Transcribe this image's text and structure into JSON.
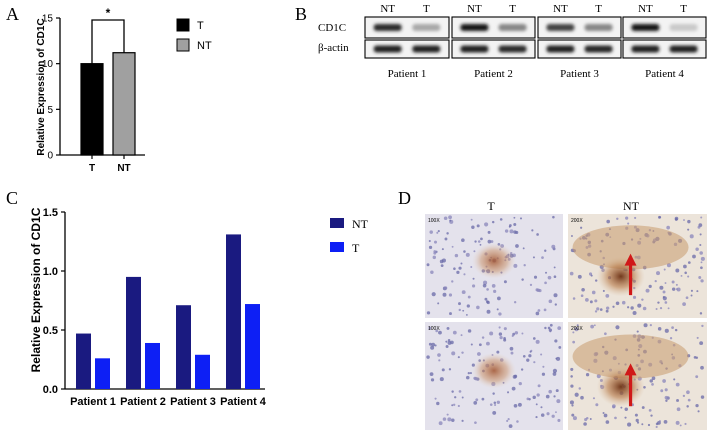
{
  "panels": {
    "A": "A",
    "B": "B",
    "C": "C",
    "D": "D"
  },
  "chart_data": [
    {
      "panel": "A",
      "type": "bar",
      "categories": [
        "T",
        "NT"
      ],
      "series": [
        {
          "values": [
            10.0,
            11.2
          ]
        }
      ],
      "ylabel": "Relative Expression of CD1C",
      "ylim": [
        0,
        15
      ],
      "yticks": [
        "0",
        "5",
        "10",
        "15"
      ],
      "legend": [
        {
          "label": "T",
          "color": "#000000"
        },
        {
          "label": "NT",
          "color": "#a0a0a0"
        }
      ],
      "legend_placement": "right",
      "significance": "*",
      "colors": [
        "#000000",
        "#a0a0a0"
      ],
      "grid": false
    },
    {
      "panel": "C",
      "type": "bar",
      "categories": [
        "Patient 1",
        "Patient 2",
        "Patient 3",
        "Patient 4"
      ],
      "series": [
        {
          "name": "NT",
          "values": [
            0.47,
            0.95,
            0.71,
            1.31
          ],
          "color": "#1a1a80"
        },
        {
          "name": "T",
          "values": [
            0.26,
            0.39,
            0.29,
            0.72
          ],
          "color": "#0d1ff5"
        }
      ],
      "ylabel": "Relative Expression of CD1C",
      "ylim": [
        0,
        1.5
      ],
      "yticks": [
        "0.0",
        "0.5",
        "1.0",
        "1.5"
      ],
      "legend_placement": "right",
      "grid": false
    }
  ],
  "blot": {
    "lane_labels": [
      "NT",
      "T",
      "NT",
      "T",
      "NT",
      "T",
      "NT",
      "T"
    ],
    "row_labels": [
      "CD1C",
      "β-actin"
    ],
    "patients": [
      "Patient 1",
      "Patient 2",
      "Patient 3",
      "Patient 4"
    ],
    "cd1c_intensity": [
      0.85,
      0.3,
      0.95,
      0.45,
      0.75,
      0.45,
      0.95,
      0.15
    ],
    "actin_intensity": [
      0.9,
      0.9,
      0.9,
      0.85,
      0.9,
      0.88,
      0.9,
      0.9
    ]
  },
  "ihc": {
    "col_labels": [
      "T",
      "NT"
    ],
    "mag_labels": [
      "100X",
      "200X",
      "100X",
      "200X"
    ]
  }
}
